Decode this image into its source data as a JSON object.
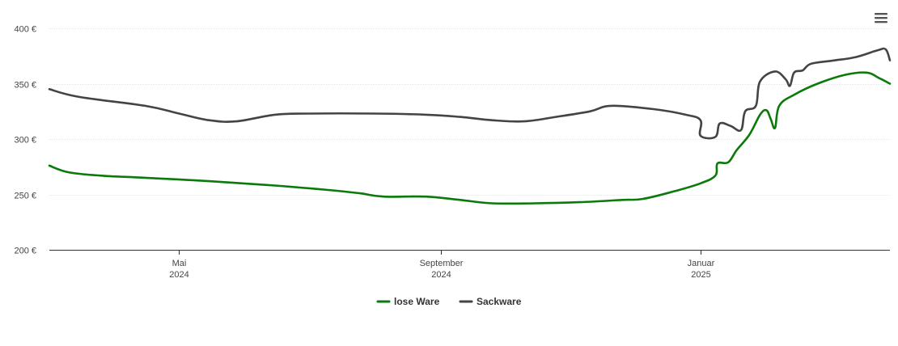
{
  "chart_data": {
    "type": "line",
    "title": "",
    "xlabel": "",
    "ylabel": "",
    "ylim": [
      200,
      400
    ],
    "y_ticks": [
      "200 €",
      "250 €",
      "300 €",
      "350 €",
      "400 €"
    ],
    "y_tick_values": [
      200,
      250,
      300,
      350,
      400
    ],
    "x_range": [
      "2024-03-01",
      "2025-03-31"
    ],
    "x_ticks": [
      {
        "date": "2024-05-01",
        "month": "Mai",
        "year": "2024"
      },
      {
        "date": "2024-09-01",
        "month": "September",
        "year": "2024"
      },
      {
        "date": "2025-01-01",
        "month": "Januar",
        "year": "2025"
      }
    ],
    "grid": "horizontal",
    "legend_position": "bottom-center",
    "series": [
      {
        "name": "lose Ware",
        "color": "#0a7a0a",
        "points": [
          [
            "2024-03-01",
            276
          ],
          [
            "2024-03-10",
            270
          ],
          [
            "2024-03-25",
            267
          ],
          [
            "2024-04-15",
            265
          ],
          [
            "2024-05-15",
            262
          ],
          [
            "2024-06-15",
            258
          ],
          [
            "2024-07-10",
            254
          ],
          [
            "2024-07-25",
            251
          ],
          [
            "2024-08-05",
            248
          ],
          [
            "2024-08-25",
            248
          ],
          [
            "2024-09-10",
            245
          ],
          [
            "2024-09-25",
            242
          ],
          [
            "2024-10-15",
            242
          ],
          [
            "2024-11-05",
            243
          ],
          [
            "2024-11-25",
            245
          ],
          [
            "2024-12-05",
            246
          ],
          [
            "2024-12-20",
            253
          ],
          [
            "2025-01-01",
            260
          ],
          [
            "2025-01-08",
            267
          ],
          [
            "2025-01-09",
            278
          ],
          [
            "2025-01-14",
            279
          ],
          [
            "2025-01-18",
            290
          ],
          [
            "2025-01-24",
            304
          ],
          [
            "2025-01-29",
            322
          ],
          [
            "2025-02-01",
            326
          ],
          [
            "2025-02-03",
            318
          ],
          [
            "2025-02-05",
            310
          ],
          [
            "2025-02-07",
            330
          ],
          [
            "2025-02-14",
            340
          ],
          [
            "2025-02-25",
            350
          ],
          [
            "2025-03-10",
            358
          ],
          [
            "2025-03-20",
            360
          ],
          [
            "2025-03-26",
            355
          ],
          [
            "2025-03-31",
            350
          ]
        ]
      },
      {
        "name": "Sackware",
        "color": "#434348",
        "points": [
          [
            "2024-03-01",
            345
          ],
          [
            "2024-03-15",
            338
          ],
          [
            "2024-04-15",
            330
          ],
          [
            "2024-05-01",
            323
          ],
          [
            "2024-05-15",
            317
          ],
          [
            "2024-05-28",
            316
          ],
          [
            "2024-06-15",
            322
          ],
          [
            "2024-07-01",
            323
          ],
          [
            "2024-08-01",
            323
          ],
          [
            "2024-08-25",
            322
          ],
          [
            "2024-09-10",
            320
          ],
          [
            "2024-09-25",
            317
          ],
          [
            "2024-10-10",
            316
          ],
          [
            "2024-10-25",
            320
          ],
          [
            "2024-11-10",
            325
          ],
          [
            "2024-11-20",
            330
          ],
          [
            "2024-12-10",
            327
          ],
          [
            "2024-12-25",
            322
          ],
          [
            "2025-01-01",
            317
          ],
          [
            "2025-01-10",
            314
          ],
          [
            "2025-01-20",
            308
          ],
          [
            "2025-01-01",
            303
          ],
          [
            "2025-01-08",
            302
          ],
          [
            "2025-01-15",
            312
          ],
          [
            "2025-01-22",
            325
          ],
          [
            "2025-01-27",
            330
          ],
          [
            "2025-01-29",
            352
          ],
          [
            "2025-02-05",
            361
          ],
          [
            "2025-02-10",
            354
          ],
          [
            "2025-02-12",
            348
          ],
          [
            "2025-02-14",
            360
          ],
          [
            "2025-02-18",
            362
          ],
          [
            "2025-02-22",
            368
          ],
          [
            "2025-03-05",
            371
          ],
          [
            "2025-03-15",
            374
          ],
          [
            "2025-03-25",
            380
          ],
          [
            "2025-03-29",
            381
          ],
          [
            "2025-03-31",
            371
          ]
        ]
      }
    ]
  },
  "menu": {
    "icon": "hamburger-menu-icon"
  }
}
